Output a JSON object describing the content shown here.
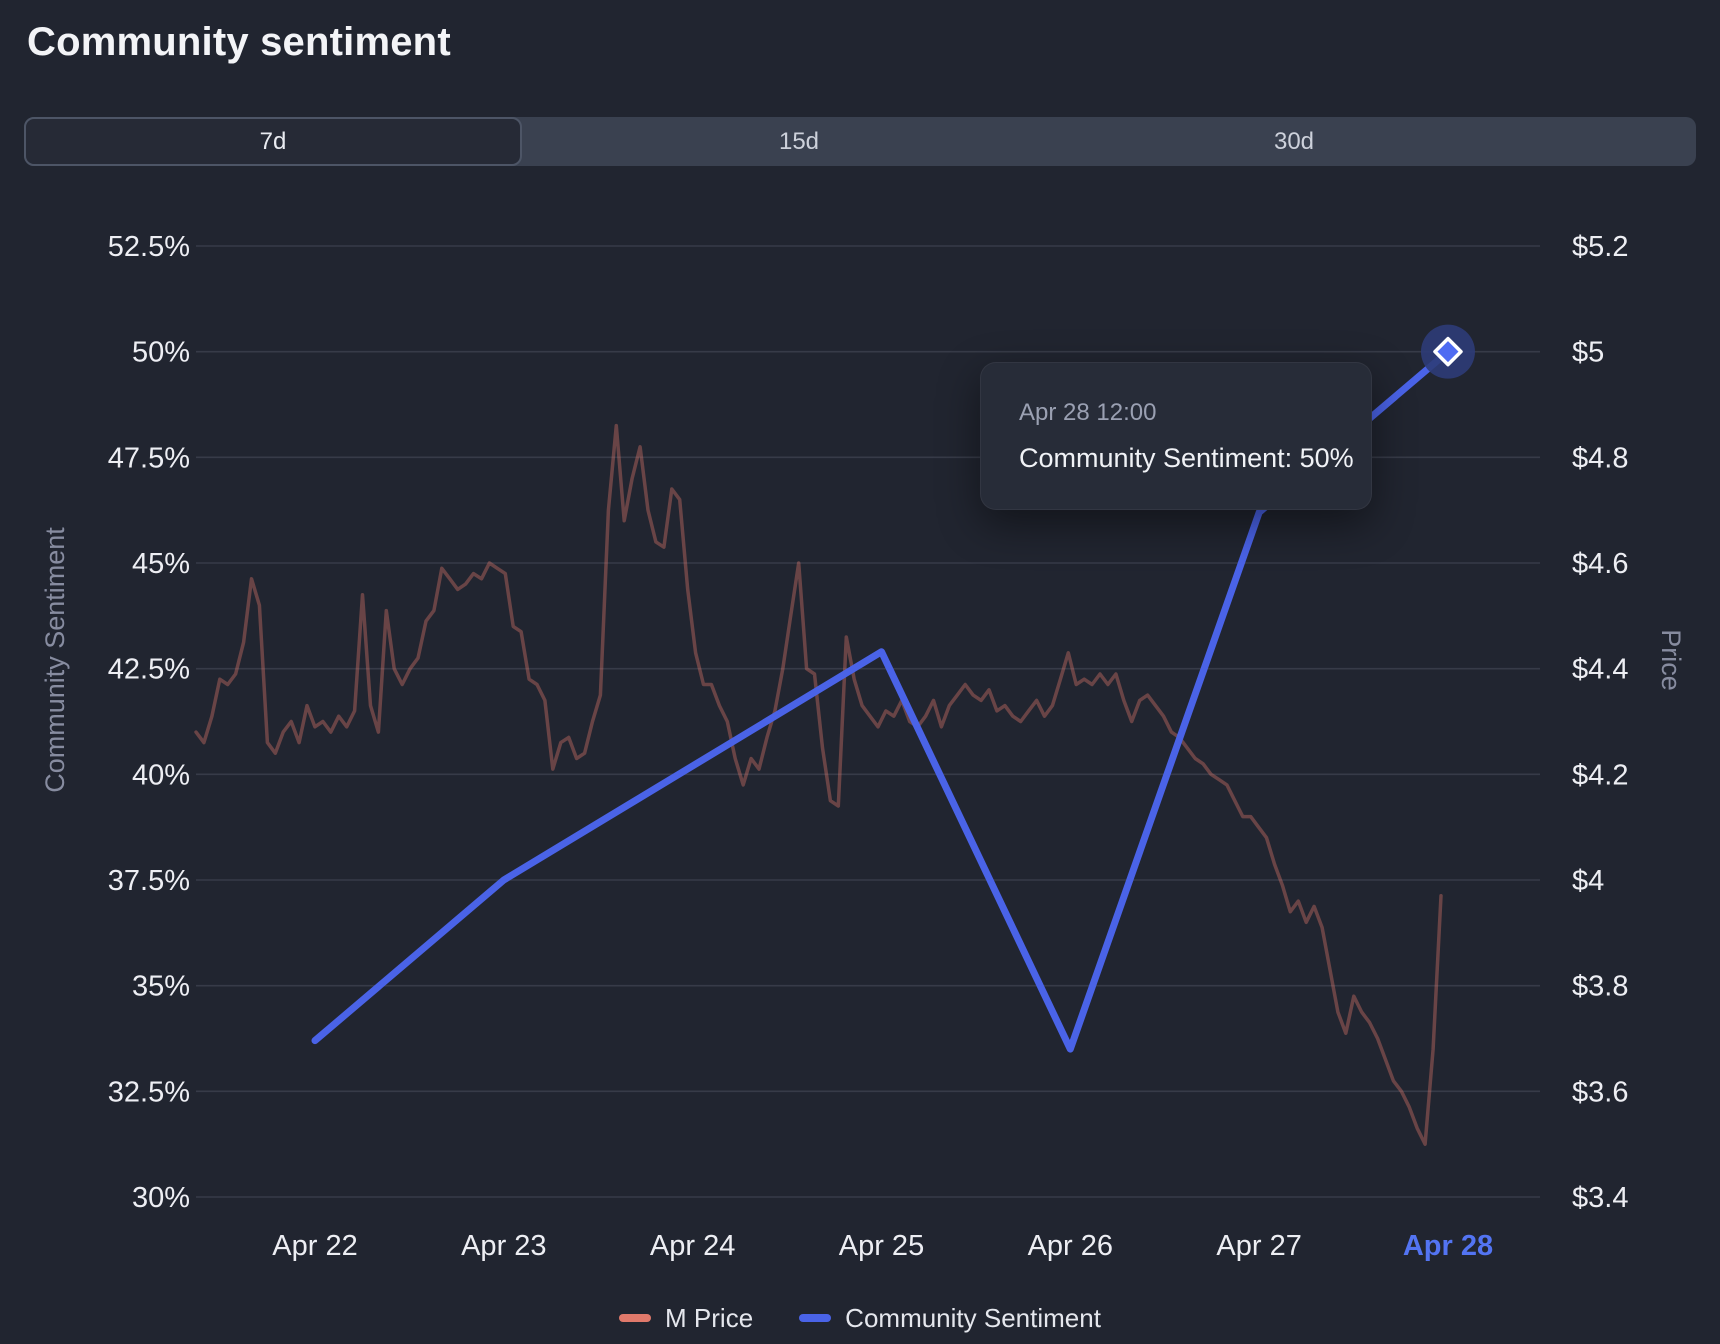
{
  "header": {
    "title": "Community sentiment"
  },
  "tabs": {
    "items": [
      {
        "label": "7d",
        "active": true
      },
      {
        "label": "15d",
        "active": false
      },
      {
        "label": "30d",
        "active": false
      }
    ]
  },
  "tooltip": {
    "date": "Apr 28 12:00",
    "value_line": "Community Sentiment: 50%"
  },
  "legend": {
    "items": [
      {
        "label": "M Price",
        "color": "#E0796B"
      },
      {
        "label": "Community Sentiment",
        "color": "#4A63E7"
      }
    ]
  },
  "colors": {
    "background": "#212530",
    "gridline": "#373B48",
    "axis_text": "#EDEEF3",
    "muted_text": "#878CA0",
    "sentiment_blue": "#4A63E7",
    "price_salmon": "#E0796B",
    "highlight_tick": "#5374F2",
    "marker_fill": "#4E6BF2",
    "marker_halo": "#2D3C78"
  },
  "chart_data": {
    "type": "line",
    "title": "Community sentiment",
    "x_ticks": [
      "Apr 22",
      "Apr 23",
      "Apr 24",
      "Apr 25",
      "Apr 26",
      "Apr 27",
      "Apr 28"
    ],
    "highlighted_x_tick": "Apr 28",
    "left_axis": {
      "label": "Community Sentiment",
      "unit": "%",
      "min": 30,
      "max": 52.5,
      "ticks": [
        "52.5%",
        "50%",
        "47.5%",
        "45%",
        "42.5%",
        "40%",
        "37.5%",
        "35%",
        "32.5%",
        "30%"
      ]
    },
    "right_axis": {
      "label": "Price",
      "unit": "$",
      "min": 3.4,
      "max": 5.2,
      "ticks": [
        "$5.2",
        "$5",
        "$4.8",
        "$4.6",
        "$4.4",
        "$4.2",
        "$4",
        "$3.8",
        "$3.6",
        "$3.4"
      ]
    },
    "grid": true,
    "legend_position": "bottom",
    "series": [
      {
        "name": "M Price",
        "axis": "right",
        "color": "#E0796B",
        "opacity": 0.38,
        "cadence": "hourly",
        "values": [
          4.28,
          4.26,
          4.31,
          4.38,
          4.37,
          4.39,
          4.45,
          4.57,
          4.52,
          4.26,
          4.24,
          4.28,
          4.3,
          4.26,
          4.33,
          4.29,
          4.3,
          4.28,
          4.31,
          4.29,
          4.32,
          4.54,
          4.33,
          4.28,
          4.51,
          4.4,
          4.37,
          4.4,
          4.42,
          4.49,
          4.51,
          4.59,
          4.57,
          4.55,
          4.56,
          4.58,
          4.57,
          4.6,
          4.59,
          4.58,
          4.48,
          4.47,
          4.38,
          4.37,
          4.34,
          4.21,
          4.26,
          4.27,
          4.23,
          4.24,
          4.3,
          4.35,
          4.7,
          4.86,
          4.68,
          4.76,
          4.82,
          4.7,
          4.64,
          4.63,
          4.74,
          4.72,
          4.55,
          4.43,
          4.37,
          4.37,
          4.33,
          4.3,
          4.23,
          4.18,
          4.23,
          4.21,
          4.27,
          4.32,
          4.4,
          4.5,
          4.6,
          4.4,
          4.39,
          4.25,
          4.15,
          4.14,
          4.46,
          4.38,
          4.33,
          4.31,
          4.29,
          4.32,
          4.31,
          4.34,
          4.3,
          4.29,
          4.31,
          4.34,
          4.29,
          4.33,
          4.35,
          4.37,
          4.35,
          4.34,
          4.36,
          4.32,
          4.33,
          4.31,
          4.3,
          4.32,
          4.34,
          4.31,
          4.33,
          4.38,
          4.43,
          4.37,
          4.38,
          4.37,
          4.39,
          4.37,
          4.39,
          4.34,
          4.3,
          4.34,
          4.35,
          4.33,
          4.31,
          4.28,
          4.27,
          4.25,
          4.23,
          4.22,
          4.2,
          4.19,
          4.18,
          4.15,
          4.12,
          4.12,
          4.1,
          4.08,
          4.03,
          3.99,
          3.94,
          3.96,
          3.92,
          3.95,
          3.91,
          3.83,
          3.75,
          3.71,
          3.78,
          3.75,
          3.73,
          3.7,
          3.66,
          3.62,
          3.6,
          3.57,
          3.53,
          3.5,
          3.68,
          3.97
        ]
      },
      {
        "name": "Community Sentiment",
        "axis": "left",
        "color": "#4A63E7",
        "cadence": "daily at 12:00",
        "categories": [
          "Apr 22",
          "Apr 23",
          "Apr 24",
          "Apr 25",
          "Apr 26",
          "Apr 27",
          "Apr 28"
        ],
        "values": [
          33.7,
          37.5,
          40.2,
          42.9,
          33.5,
          46.2,
          50
        ]
      }
    ],
    "active_point": {
      "series": "Community Sentiment",
      "category": "Apr 28",
      "time": "Apr 28 12:00",
      "value": 50,
      "display_value": "50%"
    }
  }
}
